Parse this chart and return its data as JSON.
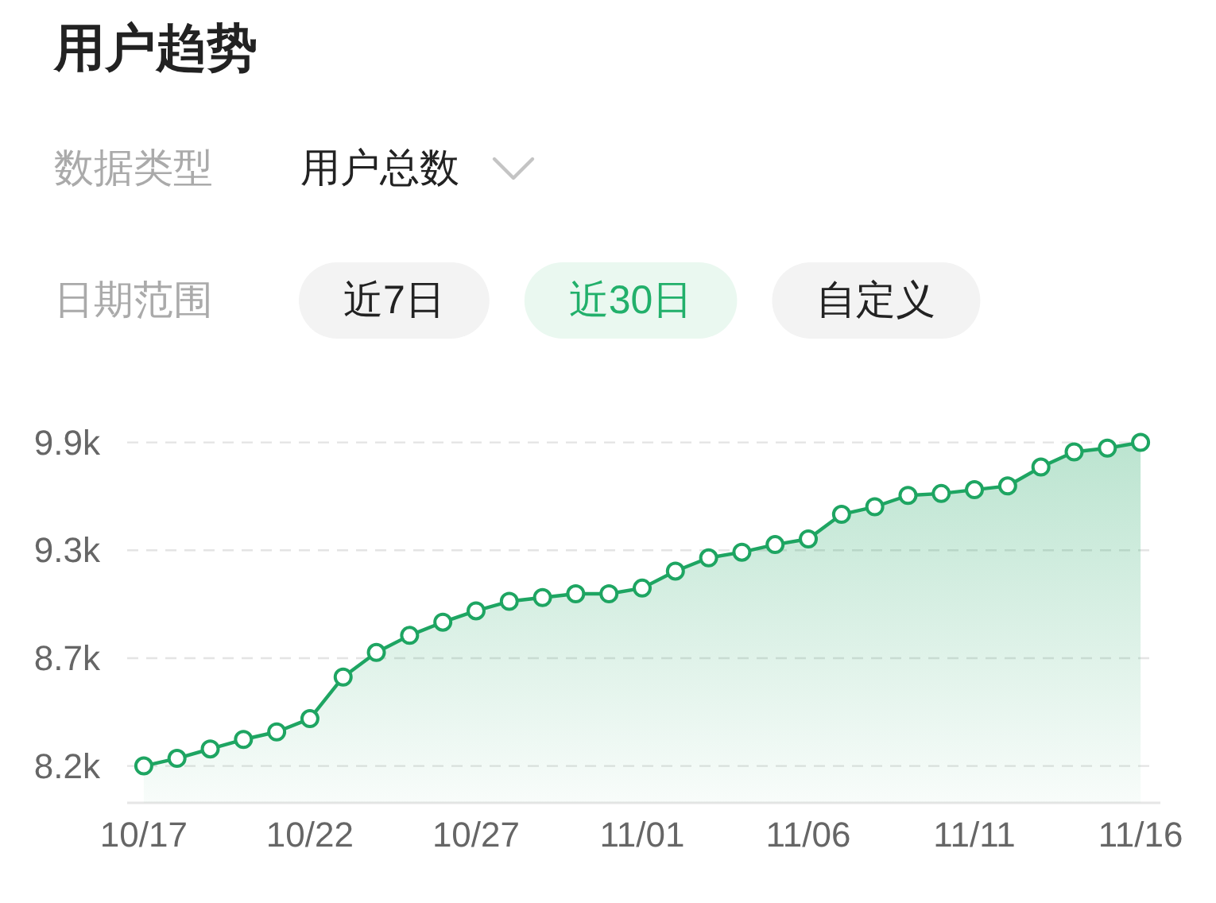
{
  "chart_data": [
    {
      "type": "other",
      "title": "用户趋势",
      "annotations": [
        "数据类型",
        "用户总数",
        "日期范围",
        "近7日",
        "近30日",
        "自定义"
      ]
    },
    {
      "type": "area",
      "categories": [
        "10/17",
        null,
        null,
        null,
        null,
        "10/22",
        null,
        null,
        null,
        null,
        "10/27",
        null,
        null,
        null,
        null,
        "11/01",
        null,
        null,
        null,
        null,
        "11/06",
        null,
        null,
        null,
        null,
        "11/11",
        null,
        null,
        null,
        null,
        "11/16"
      ],
      "values": [
        8170,
        8210,
        8260,
        8310,
        8350,
        8420,
        8640,
        8770,
        8860,
        8930,
        8990,
        9040,
        9060,
        9080,
        9080,
        9110,
        9200,
        9270,
        9300,
        9340,
        9370,
        9500,
        9540,
        9600,
        9610,
        9630,
        9650,
        9750,
        9830,
        9850,
        9880
      ],
      "color": "#1ea562",
      "ylim": [
        7975,
        9880
      ],
      "yticks": [
        {
          "value": 8170,
          "label": "8.2k"
        },
        {
          "value": 8740,
          "label": "8.7k"
        },
        {
          "value": 9310,
          "label": "9.3k"
        },
        {
          "value": 9880,
          "label": "9.9k"
        }
      ],
      "grid": "y",
      "marker": "circle"
    }
  ]
}
